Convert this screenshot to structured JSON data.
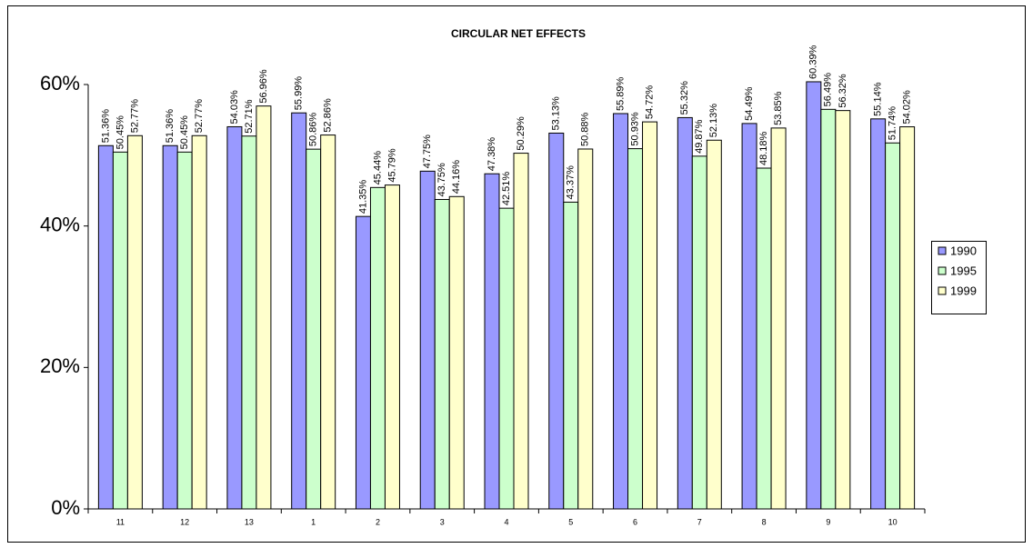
{
  "chart_data": {
    "type": "bar",
    "title": "CIRCULAR NET EFFECTS",
    "categories": [
      "11",
      "12",
      "13",
      "1",
      "2",
      "3",
      "4",
      "5",
      "6",
      "7",
      "8",
      "9",
      "10"
    ],
    "series": [
      {
        "name": "1990",
        "color": "#9999ff",
        "values": [
          51.36,
          51.36,
          54.03,
          55.99,
          41.35,
          47.75,
          47.38,
          53.13,
          55.89,
          55.32,
          54.49,
          60.39,
          55.14
        ],
        "value_labels": [
          "51.36%",
          "51.36%",
          "54.03%",
          "55.99%",
          "41.35%",
          "47.75%",
          "47.38%",
          "53.13%",
          "55.89%",
          "55.32%",
          "54.49%",
          "60.39%",
          "55.14%"
        ]
      },
      {
        "name": "1995",
        "color": "#ccffcc",
        "values": [
          50.45,
          50.45,
          52.71,
          50.86,
          45.44,
          43.75,
          42.51,
          43.37,
          50.93,
          49.87,
          48.18,
          56.49,
          51.74
        ],
        "value_labels": [
          "50.45%",
          "50.45%",
          "52.71%",
          "50.86%",
          "45.44%",
          "43.75%",
          "42.51%",
          "43.37%",
          "50.93%",
          "49.87%",
          "48.18%",
          "56.49%",
          "51.74%"
        ]
      },
      {
        "name": "1999",
        "color": "#ffffcc",
        "values": [
          52.77,
          52.77,
          56.96,
          52.86,
          45.79,
          44.16,
          50.29,
          50.88,
          54.72,
          52.13,
          53.85,
          56.32,
          54.02
        ],
        "value_labels": [
          "52.77%",
          "52.77%",
          "56.96%",
          "52.86%",
          "45.79%",
          "44.16%",
          "50.29%",
          "50.88%",
          "54.72%",
          "52.13%",
          "53.85%",
          "56.32%",
          "54.02%"
        ]
      }
    ],
    "ylim": [
      0,
      60
    ],
    "yticks": [
      {
        "value": 0,
        "label": "0%"
      },
      {
        "value": 20,
        "label": "20%"
      },
      {
        "value": 40,
        "label": "40%"
      },
      {
        "value": 60,
        "label": "60%"
      }
    ],
    "legend": "right"
  }
}
